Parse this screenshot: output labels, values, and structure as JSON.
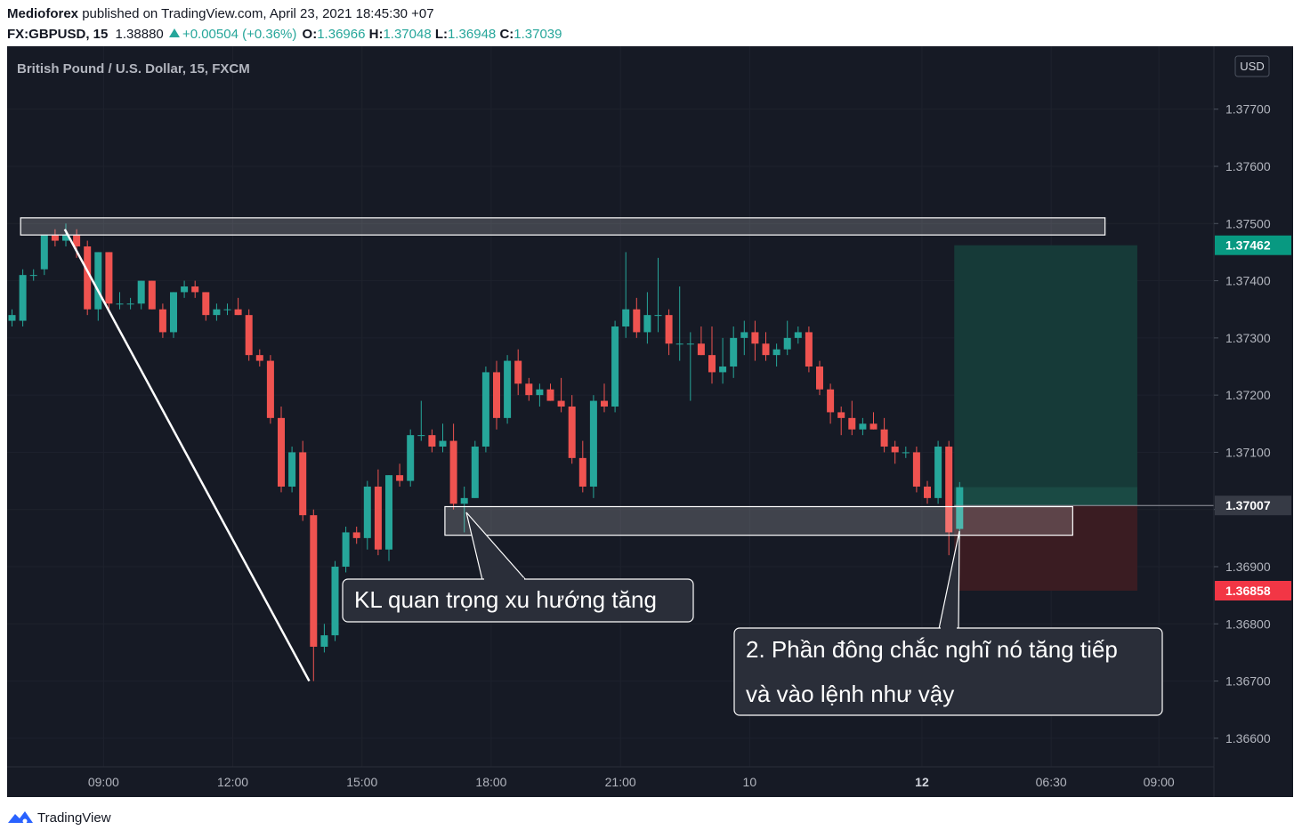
{
  "header": {
    "author": "Medioforex",
    "published_text": "published on TradingView.com, April 23, 2021 18:45:30 +07",
    "symbol": "FX:GBPUSD, 15",
    "last": "1.38880",
    "change": "+0.00504 (+0.36%)",
    "o_label": "O:",
    "o_value": "1.36966",
    "h_label": "H:",
    "h_value": "1.37048",
    "l_label": "L:",
    "l_value": "1.36948",
    "c_label": "C:",
    "c_value": "1.37039"
  },
  "footer": {
    "brand": "TradingView"
  },
  "colors": {
    "background": "#161a25",
    "up": "#26a69a",
    "down": "#ef5350",
    "text": "#b2b5be",
    "profit_zone": "#163a38",
    "loss_zone": "#3a1c22",
    "price_tag_current": "#363a45",
    "price_tag_target": "#089981",
    "price_tag_stop": "#f23645"
  },
  "chart_data": {
    "type": "candlestick",
    "title": "British Pound / U.S. Dollar, 15, FXCM",
    "currency": "USD",
    "ylim": [
      1.3655,
      1.3781
    ],
    "y_ticks": [
      "1.36600",
      "1.36700",
      "1.36800",
      "1.36900",
      "1.37000",
      "1.37100",
      "1.37200",
      "1.37300",
      "1.37400",
      "1.37500",
      "1.37600",
      "1.37700"
    ],
    "x_ticks": [
      {
        "label": "09:00",
        "i": 8.5,
        "bold": false
      },
      {
        "label": "12:00",
        "i": 20.5,
        "bold": false
      },
      {
        "label": "15:00",
        "i": 32.5,
        "bold": false
      },
      {
        "label": "18:00",
        "i": 44.5,
        "bold": false
      },
      {
        "label": "21:00",
        "i": 56.5,
        "bold": false
      },
      {
        "label": "10",
        "i": 68.5,
        "bold": false
      },
      {
        "label": "12",
        "i": 84.5,
        "bold": true
      },
      {
        "label": "06:30",
        "i": 96.5,
        "bold": false
      },
      {
        "label": "09:00",
        "i": 106.5,
        "bold": false
      }
    ],
    "candles": [
      [
        1.3733,
        1.3735,
        1.3732,
        1.3734
      ],
      [
        1.3733,
        1.3742,
        1.3732,
        1.3741
      ],
      [
        1.3741,
        1.3742,
        1.374,
        1.3741
      ],
      [
        1.3742,
        1.3748,
        1.3741,
        1.3748
      ],
      [
        1.3748,
        1.3749,
        1.3746,
        1.3747
      ],
      [
        1.3747,
        1.375,
        1.3746,
        1.3748
      ],
      [
        1.3748,
        1.3749,
        1.3744,
        1.3746
      ],
      [
        1.3746,
        1.3747,
        1.3734,
        1.3735
      ],
      [
        1.3735,
        1.3745,
        1.3733,
        1.3745
      ],
      [
        1.3745,
        1.3745,
        1.3735,
        1.3736
      ],
      [
        1.3736,
        1.3738,
        1.3735,
        1.3736
      ],
      [
        1.3736,
        1.3737,
        1.3735,
        1.3736
      ],
      [
        1.3736,
        1.374,
        1.3735,
        1.374
      ],
      [
        1.374,
        1.374,
        1.3735,
        1.3735
      ],
      [
        1.3735,
        1.3736,
        1.373,
        1.3731
      ],
      [
        1.3731,
        1.3738,
        1.373,
        1.3738
      ],
      [
        1.3738,
        1.374,
        1.3737,
        1.3739
      ],
      [
        1.3739,
        1.374,
        1.3737,
        1.3738
      ],
      [
        1.3738,
        1.3738,
        1.3733,
        1.3734
      ],
      [
        1.3734,
        1.3736,
        1.3733,
        1.3735
      ],
      [
        1.3735,
        1.3736,
        1.3734,
        1.3735
      ],
      [
        1.3735,
        1.3737,
        1.3734,
        1.3734
      ],
      [
        1.3734,
        1.3735,
        1.3726,
        1.3727
      ],
      [
        1.3727,
        1.3728,
        1.3725,
        1.3726
      ],
      [
        1.3726,
        1.3727,
        1.3715,
        1.3716
      ],
      [
        1.3716,
        1.3718,
        1.3703,
        1.3704
      ],
      [
        1.3704,
        1.3711,
        1.3703,
        1.371
      ],
      [
        1.371,
        1.3712,
        1.3698,
        1.3699
      ],
      [
        1.3699,
        1.37,
        1.367,
        1.3676
      ],
      [
        1.3676,
        1.368,
        1.3675,
        1.3678
      ],
      [
        1.3678,
        1.3691,
        1.3677,
        1.369
      ],
      [
        1.369,
        1.3697,
        1.3689,
        1.3696
      ],
      [
        1.3696,
        1.3697,
        1.3694,
        1.3695
      ],
      [
        1.3695,
        1.3705,
        1.3693,
        1.3704
      ],
      [
        1.3704,
        1.3707,
        1.3692,
        1.3693
      ],
      [
        1.3693,
        1.3706,
        1.3691,
        1.3706
      ],
      [
        1.3706,
        1.3708,
        1.3704,
        1.3705
      ],
      [
        1.3705,
        1.3714,
        1.3704,
        1.3713
      ],
      [
        1.3713,
        1.3719,
        1.3712,
        1.3713
      ],
      [
        1.3713,
        1.3714,
        1.371,
        1.3711
      ],
      [
        1.3711,
        1.3715,
        1.371,
        1.3712
      ],
      [
        1.3712,
        1.3715,
        1.37,
        1.3701
      ],
      [
        1.3701,
        1.3704,
        1.3696,
        1.3702
      ],
      [
        1.3702,
        1.3712,
        1.3702,
        1.3711
      ],
      [
        1.3711,
        1.3725,
        1.371,
        1.3724
      ],
      [
        1.3724,
        1.3726,
        1.3714,
        1.3716
      ],
      [
        1.3716,
        1.3727,
        1.3715,
        1.3726
      ],
      [
        1.3726,
        1.3728,
        1.372,
        1.3722
      ],
      [
        1.3722,
        1.3723,
        1.3719,
        1.372
      ],
      [
        1.372,
        1.3722,
        1.3718,
        1.3721
      ],
      [
        1.3721,
        1.3722,
        1.3719,
        1.3719
      ],
      [
        1.3719,
        1.3723,
        1.3717,
        1.3718
      ],
      [
        1.3718,
        1.372,
        1.3708,
        1.3709
      ],
      [
        1.3709,
        1.3712,
        1.3703,
        1.3704
      ],
      [
        1.3704,
        1.372,
        1.3702,
        1.3719
      ],
      [
        1.3719,
        1.3722,
        1.3717,
        1.3718
      ],
      [
        1.3718,
        1.3733,
        1.3717,
        1.3732
      ],
      [
        1.3732,
        1.3745,
        1.373,
        1.3735
      ],
      [
        1.3735,
        1.3737,
        1.373,
        1.3731
      ],
      [
        1.3731,
        1.3738,
        1.3729,
        1.3734
      ],
      [
        1.3734,
        1.3744,
        1.3731,
        1.3734
      ],
      [
        1.3734,
        1.3735,
        1.3727,
        1.3729
      ],
      [
        1.3729,
        1.3739,
        1.3726,
        1.3729
      ],
      [
        1.3729,
        1.3731,
        1.3719,
        1.3729
      ],
      [
        1.3729,
        1.3732,
        1.3727,
        1.3727
      ],
      [
        1.3727,
        1.3732,
        1.3722,
        1.3724
      ],
      [
        1.3724,
        1.373,
        1.3722,
        1.3725
      ],
      [
        1.3725,
        1.3732,
        1.3723,
        1.373
      ],
      [
        1.373,
        1.3733,
        1.3727,
        1.3731
      ],
      [
        1.3731,
        1.3733,
        1.3726,
        1.3729
      ],
      [
        1.3729,
        1.3731,
        1.3726,
        1.3727
      ],
      [
        1.3727,
        1.3729,
        1.3725,
        1.3728
      ],
      [
        1.3728,
        1.3733,
        1.3727,
        1.373
      ],
      [
        1.373,
        1.3732,
        1.3729,
        1.3731
      ],
      [
        1.3731,
        1.3732,
        1.3724,
        1.3725
      ],
      [
        1.3725,
        1.3726,
        1.372,
        1.3721
      ],
      [
        1.3721,
        1.3722,
        1.3715,
        1.3717
      ],
      [
        1.3717,
        1.3718,
        1.3713,
        1.3716
      ],
      [
        1.3716,
        1.3719,
        1.3713,
        1.3714
      ],
      [
        1.3714,
        1.3716,
        1.3713,
        1.3715
      ],
      [
        1.3715,
        1.3717,
        1.3714,
        1.3714
      ],
      [
        1.3714,
        1.3716,
        1.371,
        1.3711
      ],
      [
        1.3711,
        1.3712,
        1.3708,
        1.371
      ],
      [
        1.371,
        1.3711,
        1.3709,
        1.371
      ],
      [
        1.371,
        1.3711,
        1.3703,
        1.3704
      ],
      [
        1.3704,
        1.3705,
        1.3701,
        1.3702
      ],
      [
        1.3702,
        1.3712,
        1.3701,
        1.3711
      ],
      [
        1.3711,
        1.3712,
        1.3692,
        1.3696
      ],
      [
        1.36966,
        1.37048,
        1.36948,
        1.37039
      ]
    ],
    "annotations": [
      {
        "type": "box",
        "i_start": 0.8,
        "i_end": 101.5,
        "y_top": 1.3751,
        "y_bottom": 1.3748
      },
      {
        "type": "box",
        "i_start": 40.2,
        "i_end": 98.5,
        "y_top": 1.37005,
        "y_bottom": 1.36955
      },
      {
        "type": "line",
        "i_start": 4.9,
        "y_start": 1.3749,
        "i_end": 27.6,
        "y_end": 1.367
      },
      {
        "type": "long_position",
        "i_start": 87.5,
        "i_end": 104.5,
        "entry": 1.37007,
        "target": 1.37462,
        "stop": 1.36858
      }
    ],
    "price_labels": [
      {
        "value": 1.37462,
        "text": "1.37462",
        "kind": "target"
      },
      {
        "value": 1.37007,
        "text": "1.37007",
        "kind": "current"
      },
      {
        "value": 1.36858,
        "text": "1.36858",
        "kind": "stop"
      }
    ],
    "callouts": [
      {
        "id": "callout-1",
        "lines": [
          "KL quan trọng xu hướng tăng"
        ]
      },
      {
        "id": "callout-2",
        "lines": [
          "2. Phần đông chắc nghĩ nó tăng tiếp",
          "và vào lệnh như vậy"
        ]
      }
    ]
  }
}
